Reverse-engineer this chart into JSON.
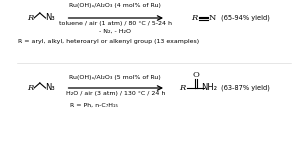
{
  "bg_color": "#f5f5f5",
  "reaction1": {
    "catalyst": "Ru(OH)ₓ/Al₂O₃ (4 mol% of Ru)",
    "conditions": "toluene / air (1 atm) / 80 °C / 5-24 h",
    "byproducts": "- N₂, - H₂O",
    "yield": "(65-94% yield)",
    "r_group": "R = aryl, alkyl, heteroaryl or alkenyl group (13 examples)"
  },
  "reaction2": {
    "catalyst": "Ru(OH)ₓ/Al₂O₃ (5 mol% of Ru)",
    "conditions": "H₂O / air (3 atm) / 130 °C / 24 h",
    "yield": "(63-87% yield)",
    "r_group": "R = Ph, n-C₇H₁₅"
  }
}
